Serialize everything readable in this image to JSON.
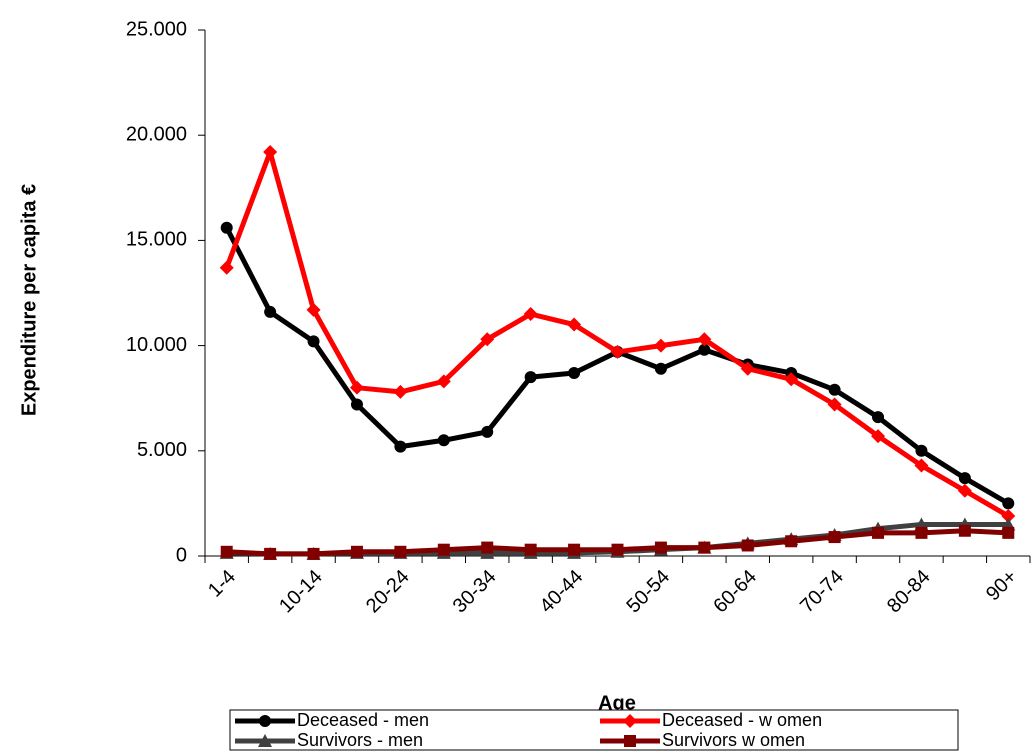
{
  "chart_data": {
    "type": "line",
    "x_label": "Age",
    "y_label": "Expenditure per capita €",
    "categories": [
      "1-4",
      null,
      "10-14",
      null,
      "20-24",
      null,
      "30-34",
      null,
      "40-44",
      null,
      "50-54",
      null,
      "60-64",
      null,
      "70-74",
      null,
      "80-84",
      null,
      "90+"
    ],
    "ylim": [
      0,
      25000
    ],
    "yticks": [
      0,
      {
        "value": 5000,
        "label": "5.000"
      },
      {
        "value": 10000,
        "label": "10.000"
      },
      {
        "value": 15000,
        "label": "15.000"
      },
      {
        "value": 20000,
        "label": "20.000"
      },
      {
        "value": 25000,
        "label": "25.000"
      }
    ],
    "series": [
      {
        "name": "Deceased - men",
        "color": "#000000",
        "marker": "circle",
        "values": [
          15600,
          11600,
          10200,
          7200,
          5200,
          5500,
          5900,
          8500,
          8700,
          9700,
          8900,
          9800,
          9100,
          8700,
          7900,
          6600,
          5000,
          3700,
          2500
        ]
      },
      {
        "name": "Deceased - w omen",
        "color": "#ff0000",
        "marker": "diamond",
        "values": [
          13700,
          19200,
          11700,
          8000,
          7800,
          8300,
          10300,
          11500,
          11000,
          9700,
          10000,
          10300,
          8900,
          8400,
          7200,
          5700,
          4300,
          3100,
          1900
        ]
      },
      {
        "name": "Survivors - men",
        "color": "#404040",
        "marker": "triangle",
        "values": [
          150,
          100,
          100,
          150,
          150,
          150,
          150,
          150,
          150,
          200,
          300,
          400,
          600,
          800,
          1000,
          1300,
          1500,
          1500,
          1500
        ]
      },
      {
        "name": "Survivors w omen",
        "color": "#800000",
        "marker": "square",
        "values": [
          200,
          100,
          100,
          200,
          200,
          300,
          400,
          300,
          300,
          300,
          400,
          400,
          500,
          700,
          900,
          1100,
          1100,
          1200,
          1100
        ]
      }
    ]
  }
}
